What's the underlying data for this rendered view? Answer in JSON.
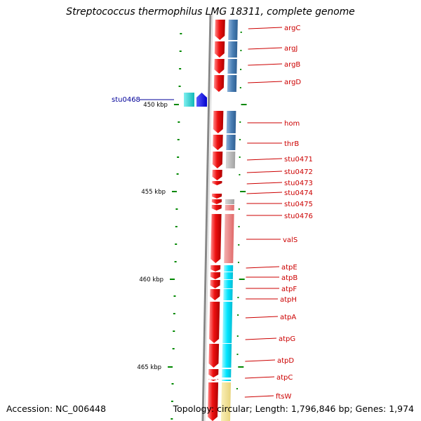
{
  "title": "Streptococcus thermophilus LMG 18311, complete genome",
  "footer": {
    "accession": "Accession: NC_006448",
    "summary": "Topology: circular; Length: 1,796,846 bp; Genes: 1,974"
  },
  "colors": {
    "gene_arrow": "#ee1111",
    "label_text": "#cc0000",
    "reverse_label_text": "#000099",
    "cog_blue": "#4a7fb5",
    "cog_gray": "#b0b0b0",
    "cog_pink": "#e87878",
    "cog_cyan": "#00e5ff",
    "cog_khaki": "#f0e08c",
    "reverse_cyan": "#20cccc",
    "reverse_blue": "#1010ee",
    "tick_green": "#008800",
    "backbone_gray": "#888888"
  },
  "scale_labels": [
    "450 kbp",
    "455 kbp",
    "460 kbp",
    "465 kbp"
  ],
  "forward_genes": [
    {
      "name": "argC",
      "cog": "blue"
    },
    {
      "name": "argJ",
      "cog": "blue"
    },
    {
      "name": "argB",
      "cog": "blue"
    },
    {
      "name": "argD",
      "cog": "blue"
    },
    {
      "name": "hom",
      "cog": "blue"
    },
    {
      "name": "thrB",
      "cog": "blue"
    },
    {
      "name": "stu0471",
      "cog": "gray"
    },
    {
      "name": "stu0472",
      "cog": "none"
    },
    {
      "name": "stu0473",
      "cog": "none"
    },
    {
      "name": "stu0474",
      "cog": "none"
    },
    {
      "name": "stu0475",
      "cog": "gray"
    },
    {
      "name": "stu0476",
      "cog": "pink"
    },
    {
      "name": "valS",
      "cog": "pink"
    },
    {
      "name": "atpE",
      "cog": "cyan"
    },
    {
      "name": "atpB",
      "cog": "cyan"
    },
    {
      "name": "atpF",
      "cog": "cyan"
    },
    {
      "name": "atpH",
      "cog": "cyan"
    },
    {
      "name": "atpA",
      "cog": "cyan"
    },
    {
      "name": "atpG",
      "cog": "cyan"
    },
    {
      "name": "atpD",
      "cog": "cyan"
    },
    {
      "name": "atpC",
      "cog": "cyan"
    },
    {
      "name": "ftsW",
      "cog": "khaki"
    }
  ],
  "reverse_genes": [
    {
      "name": "stu0468"
    }
  ]
}
